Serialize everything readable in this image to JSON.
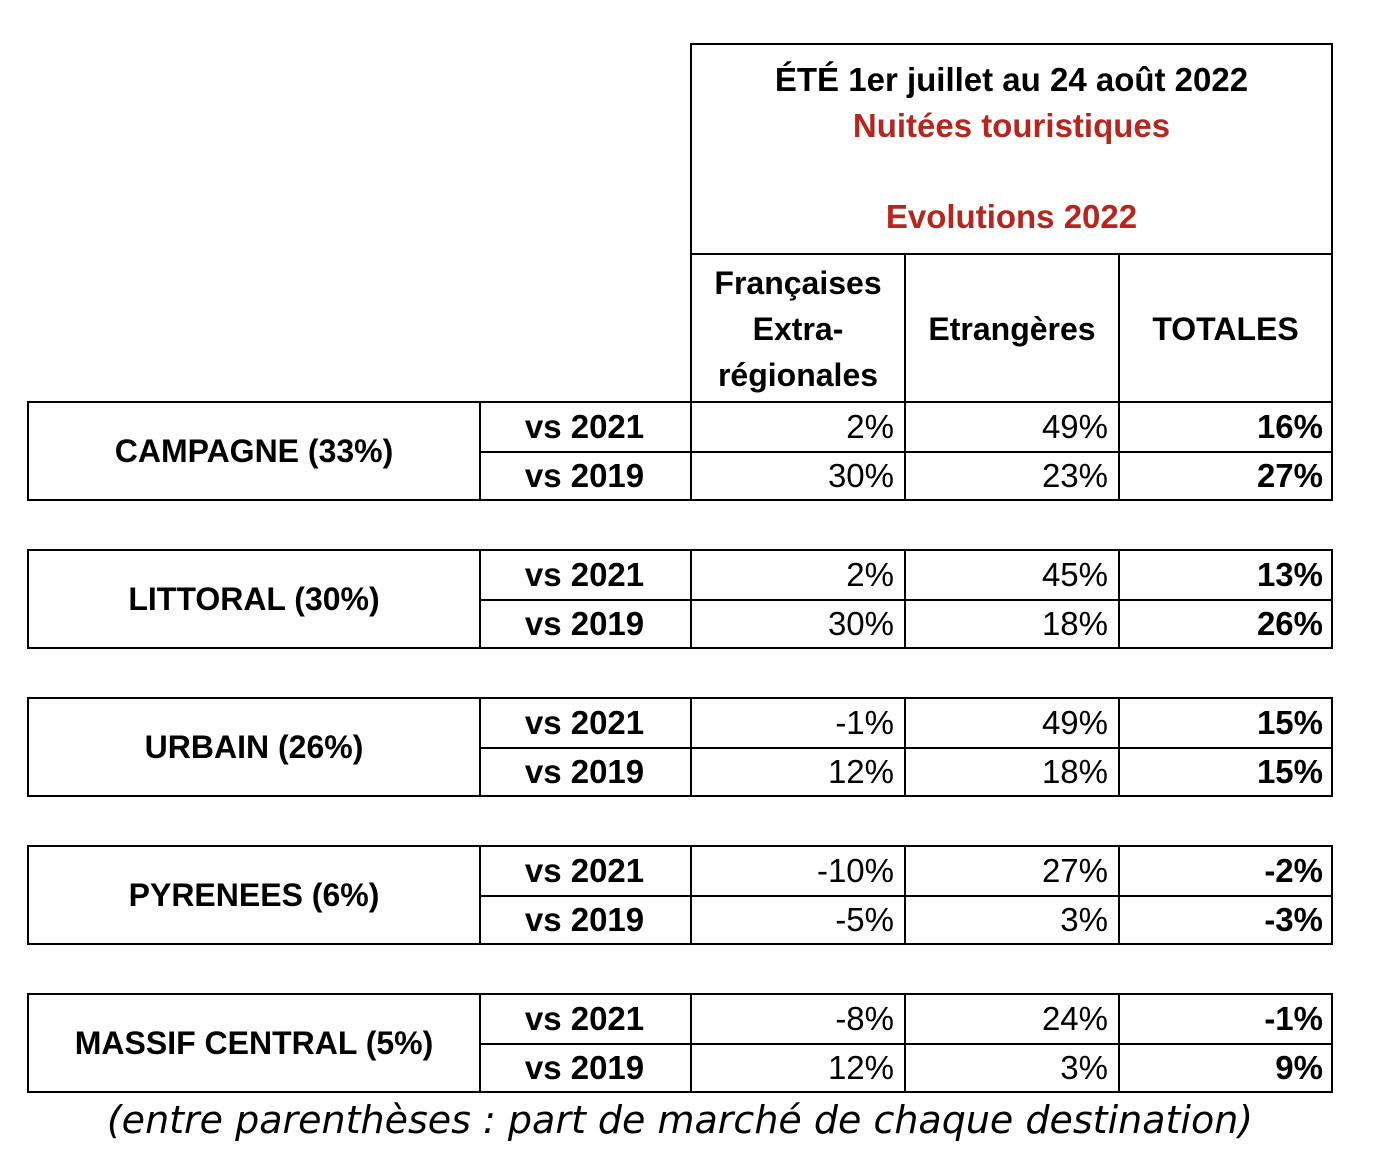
{
  "header": {
    "line1": "ÉTÉ 1er juillet au 24 août 2022",
    "line2": "Nuitées touristiques",
    "line3": "Evolutions 2022",
    "columns": [
      "Françaises Extra-régionales",
      "Etrangères",
      "TOTALES"
    ],
    "col1_lines": [
      "Françaises",
      "Extra-",
      "régionales"
    ]
  },
  "accent_color": "#b5261e",
  "groups": [
    {
      "label": "CAMPAGNE (33%)",
      "rows": [
        {
          "vs": "vs 2021",
          "v1": "2%",
          "v2": "49%",
          "v3": "16%"
        },
        {
          "vs": "vs 2019",
          "v1": "30%",
          "v2": "23%",
          "v3": "27%"
        }
      ]
    },
    {
      "label": "LITTORAL (30%)",
      "rows": [
        {
          "vs": "vs 2021",
          "v1": "2%",
          "v2": "45%",
          "v3": "13%"
        },
        {
          "vs": "vs 2019",
          "v1": "30%",
          "v2": "18%",
          "v3": "26%"
        }
      ]
    },
    {
      "label": "URBAIN (26%)",
      "rows": [
        {
          "vs": "vs 2021",
          "v1": "-1%",
          "v2": "49%",
          "v3": "15%"
        },
        {
          "vs": "vs 2019",
          "v1": "12%",
          "v2": "18%",
          "v3": "15%"
        }
      ]
    },
    {
      "label": "PYRENEES (6%)",
      "rows": [
        {
          "vs": "vs 2021",
          "v1": "-10%",
          "v2": "27%",
          "v3": "-2%"
        },
        {
          "vs": "vs 2019",
          "v1": "-5%",
          "v2": "3%",
          "v3": "-3%"
        }
      ]
    },
    {
      "label": "MASSIF CENTRAL (5%)",
      "rows": [
        {
          "vs": "vs 2021",
          "v1": "-8%",
          "v2": "24%",
          "v3": "-1%"
        },
        {
          "vs": "vs 2019",
          "v1": "12%",
          "v2": "3%",
          "v3": "9%"
        }
      ]
    }
  ],
  "footnote": "(entre parenthèses : part de marché de chaque destination)"
}
